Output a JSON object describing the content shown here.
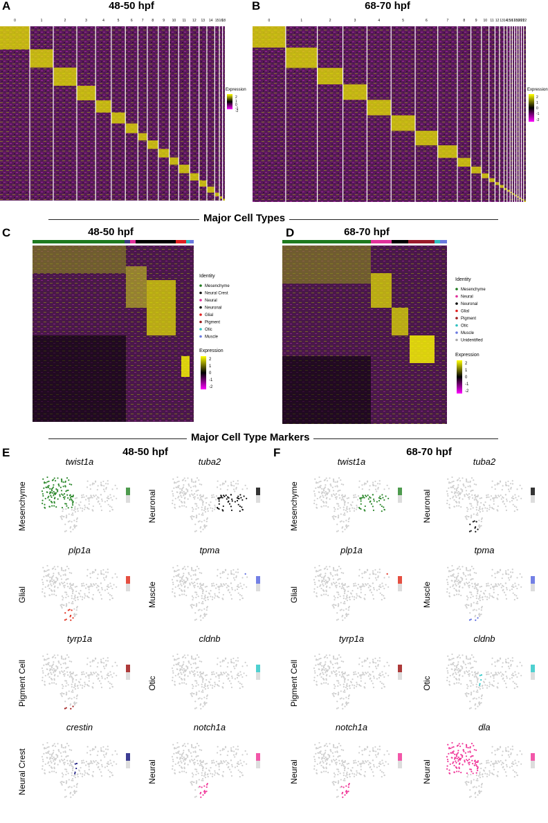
{
  "panels": {
    "A": {
      "letter": "A",
      "title": "48-50 hpf",
      "clusters": [
        "0",
        "1",
        "2",
        "3",
        "4",
        "5",
        "6",
        "7",
        "8",
        "9",
        "10",
        "11",
        "12",
        "13",
        "14",
        "15",
        "16",
        "18"
      ]
    },
    "B": {
      "letter": "B",
      "title": "68-70 hpf",
      "clusters": [
        "0",
        "1",
        "2",
        "3",
        "4",
        "5",
        "6",
        "7",
        "8",
        "9",
        "10",
        "11",
        "12",
        "13",
        "14",
        "15",
        "16",
        "17",
        "18",
        "19",
        "20",
        "21",
        "22"
      ]
    },
    "C": {
      "letter": "C",
      "title": "48-50 hpf"
    },
    "D": {
      "letter": "D",
      "title": "68-70 hpf"
    },
    "E": {
      "letter": "E",
      "title": "48-50 hpf"
    },
    "F": {
      "letter": "F",
      "title": "68-70 hpf"
    }
  },
  "sections": {
    "major_cell_types": "Major Cell Types",
    "major_cell_type_markers": "Major Cell Type Markers"
  },
  "expression_legend": {
    "title": "Expression",
    "ticks": [
      "2",
      "1",
      "0",
      "-1",
      "-2"
    ]
  },
  "identity_legend_C": {
    "title": "Identity",
    "items": [
      {
        "label": "Mesenchyme",
        "color": "#1e7a1e"
      },
      {
        "label": "Neural Crest",
        "color": "#111111"
      },
      {
        "label": "Neural",
        "color": "#e0309a"
      },
      {
        "label": "Neuronal",
        "color": "#000000"
      },
      {
        "label": "Glial",
        "color": "#e02020"
      },
      {
        "label": "Pigment",
        "color": "#9a1a1a"
      },
      {
        "label": "Otic",
        "color": "#30c0c0"
      },
      {
        "label": "Muscle",
        "color": "#6a7ae0"
      }
    ]
  },
  "identity_legend_D": {
    "title": "Identity",
    "items": [
      {
        "label": "Mesenchyme",
        "color": "#1e7a1e"
      },
      {
        "label": "Neural",
        "color": "#e0309a"
      },
      {
        "label": "Neuronal",
        "color": "#000000"
      },
      {
        "label": "Glial",
        "color": "#e02020"
      },
      {
        "label": "Pigment",
        "color": "#9a1a1a"
      },
      {
        "label": "Otic",
        "color": "#30c0c0"
      },
      {
        "label": "Muscle",
        "color": "#6a7ae0"
      },
      {
        "label": "Unidentified",
        "color": "#aaaaaa"
      }
    ]
  },
  "tsne_E": [
    {
      "gene": "twist1a",
      "type": "Mesenchyme",
      "color": "#2f8a2f"
    },
    {
      "gene": "tuba2",
      "type": "Neuronal",
      "color": "#111111"
    },
    {
      "gene": "plp1a",
      "type": "Glial",
      "color": "#e03020"
    },
    {
      "gene": "tpma",
      "type": "Muscle",
      "color": "#5a6ae0"
    },
    {
      "gene": "tyrp1a",
      "type": "Pigment Cell",
      "color": "#a01818"
    },
    {
      "gene": "cldnb",
      "type": "Otic",
      "color": "#30c8c8"
    },
    {
      "gene": "crestin",
      "type": "Neural Crest",
      "color": "#1a1a80"
    },
    {
      "gene": "notch1a",
      "type": "Neural",
      "color": "#f03a9a"
    }
  ],
  "tsne_F": [
    {
      "gene": "twist1a",
      "type": "Mesenchyme",
      "color": "#2f8a2f"
    },
    {
      "gene": "tuba2",
      "type": "Neuronal",
      "color": "#111111"
    },
    {
      "gene": "plp1a",
      "type": "Glial",
      "color": "#e03020"
    },
    {
      "gene": "tpma",
      "type": "Muscle",
      "color": "#5a6ae0"
    },
    {
      "gene": "tyrp1a",
      "type": "Pigment Cell",
      "color": "#a01818"
    },
    {
      "gene": "cldnb",
      "type": "Otic",
      "color": "#30c8c8"
    },
    {
      "gene": "notch1a",
      "type": "Neural",
      "color": "#f03a9a"
    },
    {
      "gene": "dla",
      "type": "Neural",
      "color": "#f03a9a"
    }
  ]
}
